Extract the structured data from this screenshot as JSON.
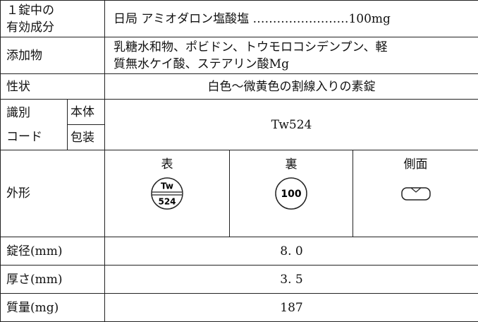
{
  "table": {
    "ingredient": {
      "label": [
        "１錠中の",
        "有効成分"
      ],
      "value": "日局 アミオダロン塩酸塩 ……………………100mg"
    },
    "additives": {
      "label": "添加物",
      "value": [
        "乳糖水和物、ポビドン、トウモロコシデンプン、軽",
        "質無水ケイ酸、ステアリン酸Mg"
      ]
    },
    "description": {
      "label": "性状",
      "value": "白色～微黄色の割線入りの素錠"
    },
    "code": {
      "label": [
        "識別",
        "コード"
      ],
      "body": "本体",
      "package": "包装",
      "value": "Tw524"
    },
    "appearance": {
      "label": "外形",
      "front": {
        "label": "表",
        "imprint": [
          "Tw",
          "524"
        ]
      },
      "back": {
        "label": "裏",
        "imprint": "100"
      },
      "side": {
        "label": "側面"
      }
    },
    "diameter": {
      "label": "錠径(mm)",
      "value": "8. 0"
    },
    "thickness": {
      "label": "厚さ(mm)",
      "value": "3. 5"
    },
    "weight": {
      "label": "質量(mg)",
      "value": "187"
    }
  }
}
